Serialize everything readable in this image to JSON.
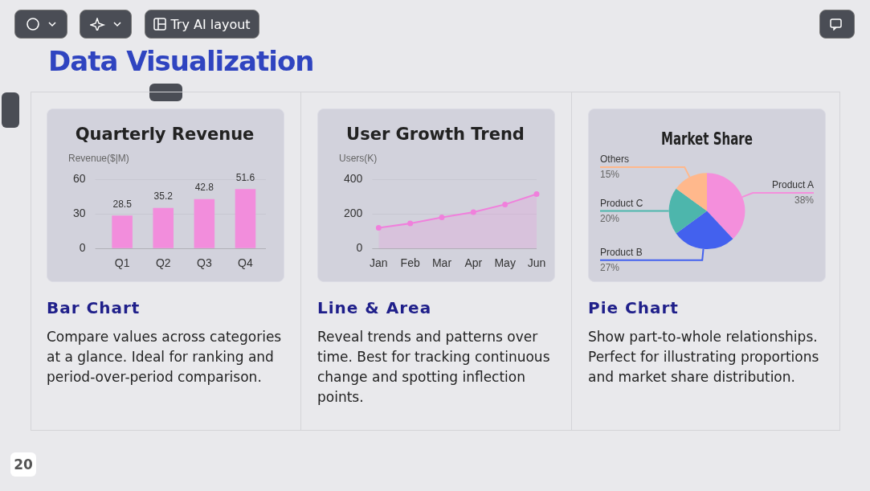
{
  "chart_data": [
    {
      "type": "bar",
      "title": "Quarterly Revenue",
      "ylabel": "Revenue($|M)",
      "categories": [
        "Q1",
        "Q2",
        "Q3",
        "Q4"
      ],
      "values": [
        28.5,
        35.2,
        42.8,
        51.6
      ],
      "color": "#f28ddc",
      "ylim": [
        0,
        60
      ],
      "yticks": [
        0,
        30,
        60
      ],
      "grid": "y",
      "data_labels": true,
      "legend": false,
      "annotations": [
        "Bar Chart",
        "Compare values across categories at a glance. Ideal for ranking and period-over-period comparison."
      ]
    },
    {
      "type": "area",
      "title": "User Growth Trend",
      "ylabel": "Users(K)",
      "categories": [
        "Jan",
        "Feb",
        "Mar",
        "Apr",
        "May",
        "Jun"
      ],
      "values": [
        120,
        145,
        180,
        210,
        255,
        315
      ],
      "color": "#f080dc",
      "ylim": [
        0,
        400
      ],
      "yticks": [
        0,
        200,
        400
      ],
      "grid": "y",
      "marker": "circle",
      "legend": false,
      "annotations": [
        "Line & Area",
        "Reveal trends and patterns over time. Best for tracking continuous change and spotting inflection points."
      ]
    },
    {
      "type": "pie",
      "title": "Market Share",
      "categories": [
        "Product A",
        "Product B",
        "Product C",
        "Others"
      ],
      "values": [
        38,
        27,
        20,
        15
      ],
      "colors": [
        "#f48fdc",
        "#4361ee",
        "#4db6ac",
        "#ffb88c"
      ],
      "value_labels": [
        "38%",
        "27%",
        "20%",
        "15%"
      ],
      "legend": false,
      "annotations": [
        "Pie Chart",
        "Show part-to-whole relationships. Perfect for illustrating proportions and market share distribution."
      ]
    },
    {
      "type": "other",
      "title": "Data Visualization",
      "annotations": [
        "Try AI layout",
        "20"
      ]
    }
  ]
}
